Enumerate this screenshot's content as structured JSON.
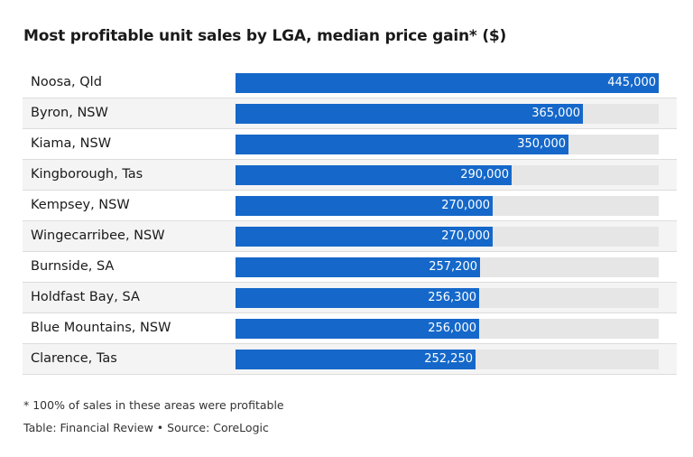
{
  "chart_data": {
    "type": "bar",
    "orientation": "horizontal",
    "title": "Most profitable unit sales by LGA, median price gain* ($)",
    "categories": [
      "Noosa, Qld",
      "Byron, NSW",
      "Kiama, NSW",
      "Kingborough, Tas",
      "Kempsey, NSW",
      "Wingecarribee, NSW",
      "Burnside, SA",
      "Holdfast Bay, SA",
      "Blue Mountains, NSW",
      "Clarence, Tas"
    ],
    "values": [
      445000,
      365000,
      350000,
      290000,
      270000,
      270000,
      257200,
      256300,
      256000,
      252250
    ],
    "value_labels": [
      "445,000",
      "365,000",
      "350,000",
      "290,000",
      "270,000",
      "270,000",
      "257,200",
      "256,300",
      "256,000",
      "252,250"
    ],
    "xlim": [
      0,
      445000
    ],
    "colors": {
      "bar": "#1568c9",
      "track": "#e6e6e6",
      "row_alt": "#f4f4f4"
    }
  },
  "footnote": "* 100% of sales in these areas were profitable",
  "source": "Table: Financial Review • Source: CoreLogic"
}
